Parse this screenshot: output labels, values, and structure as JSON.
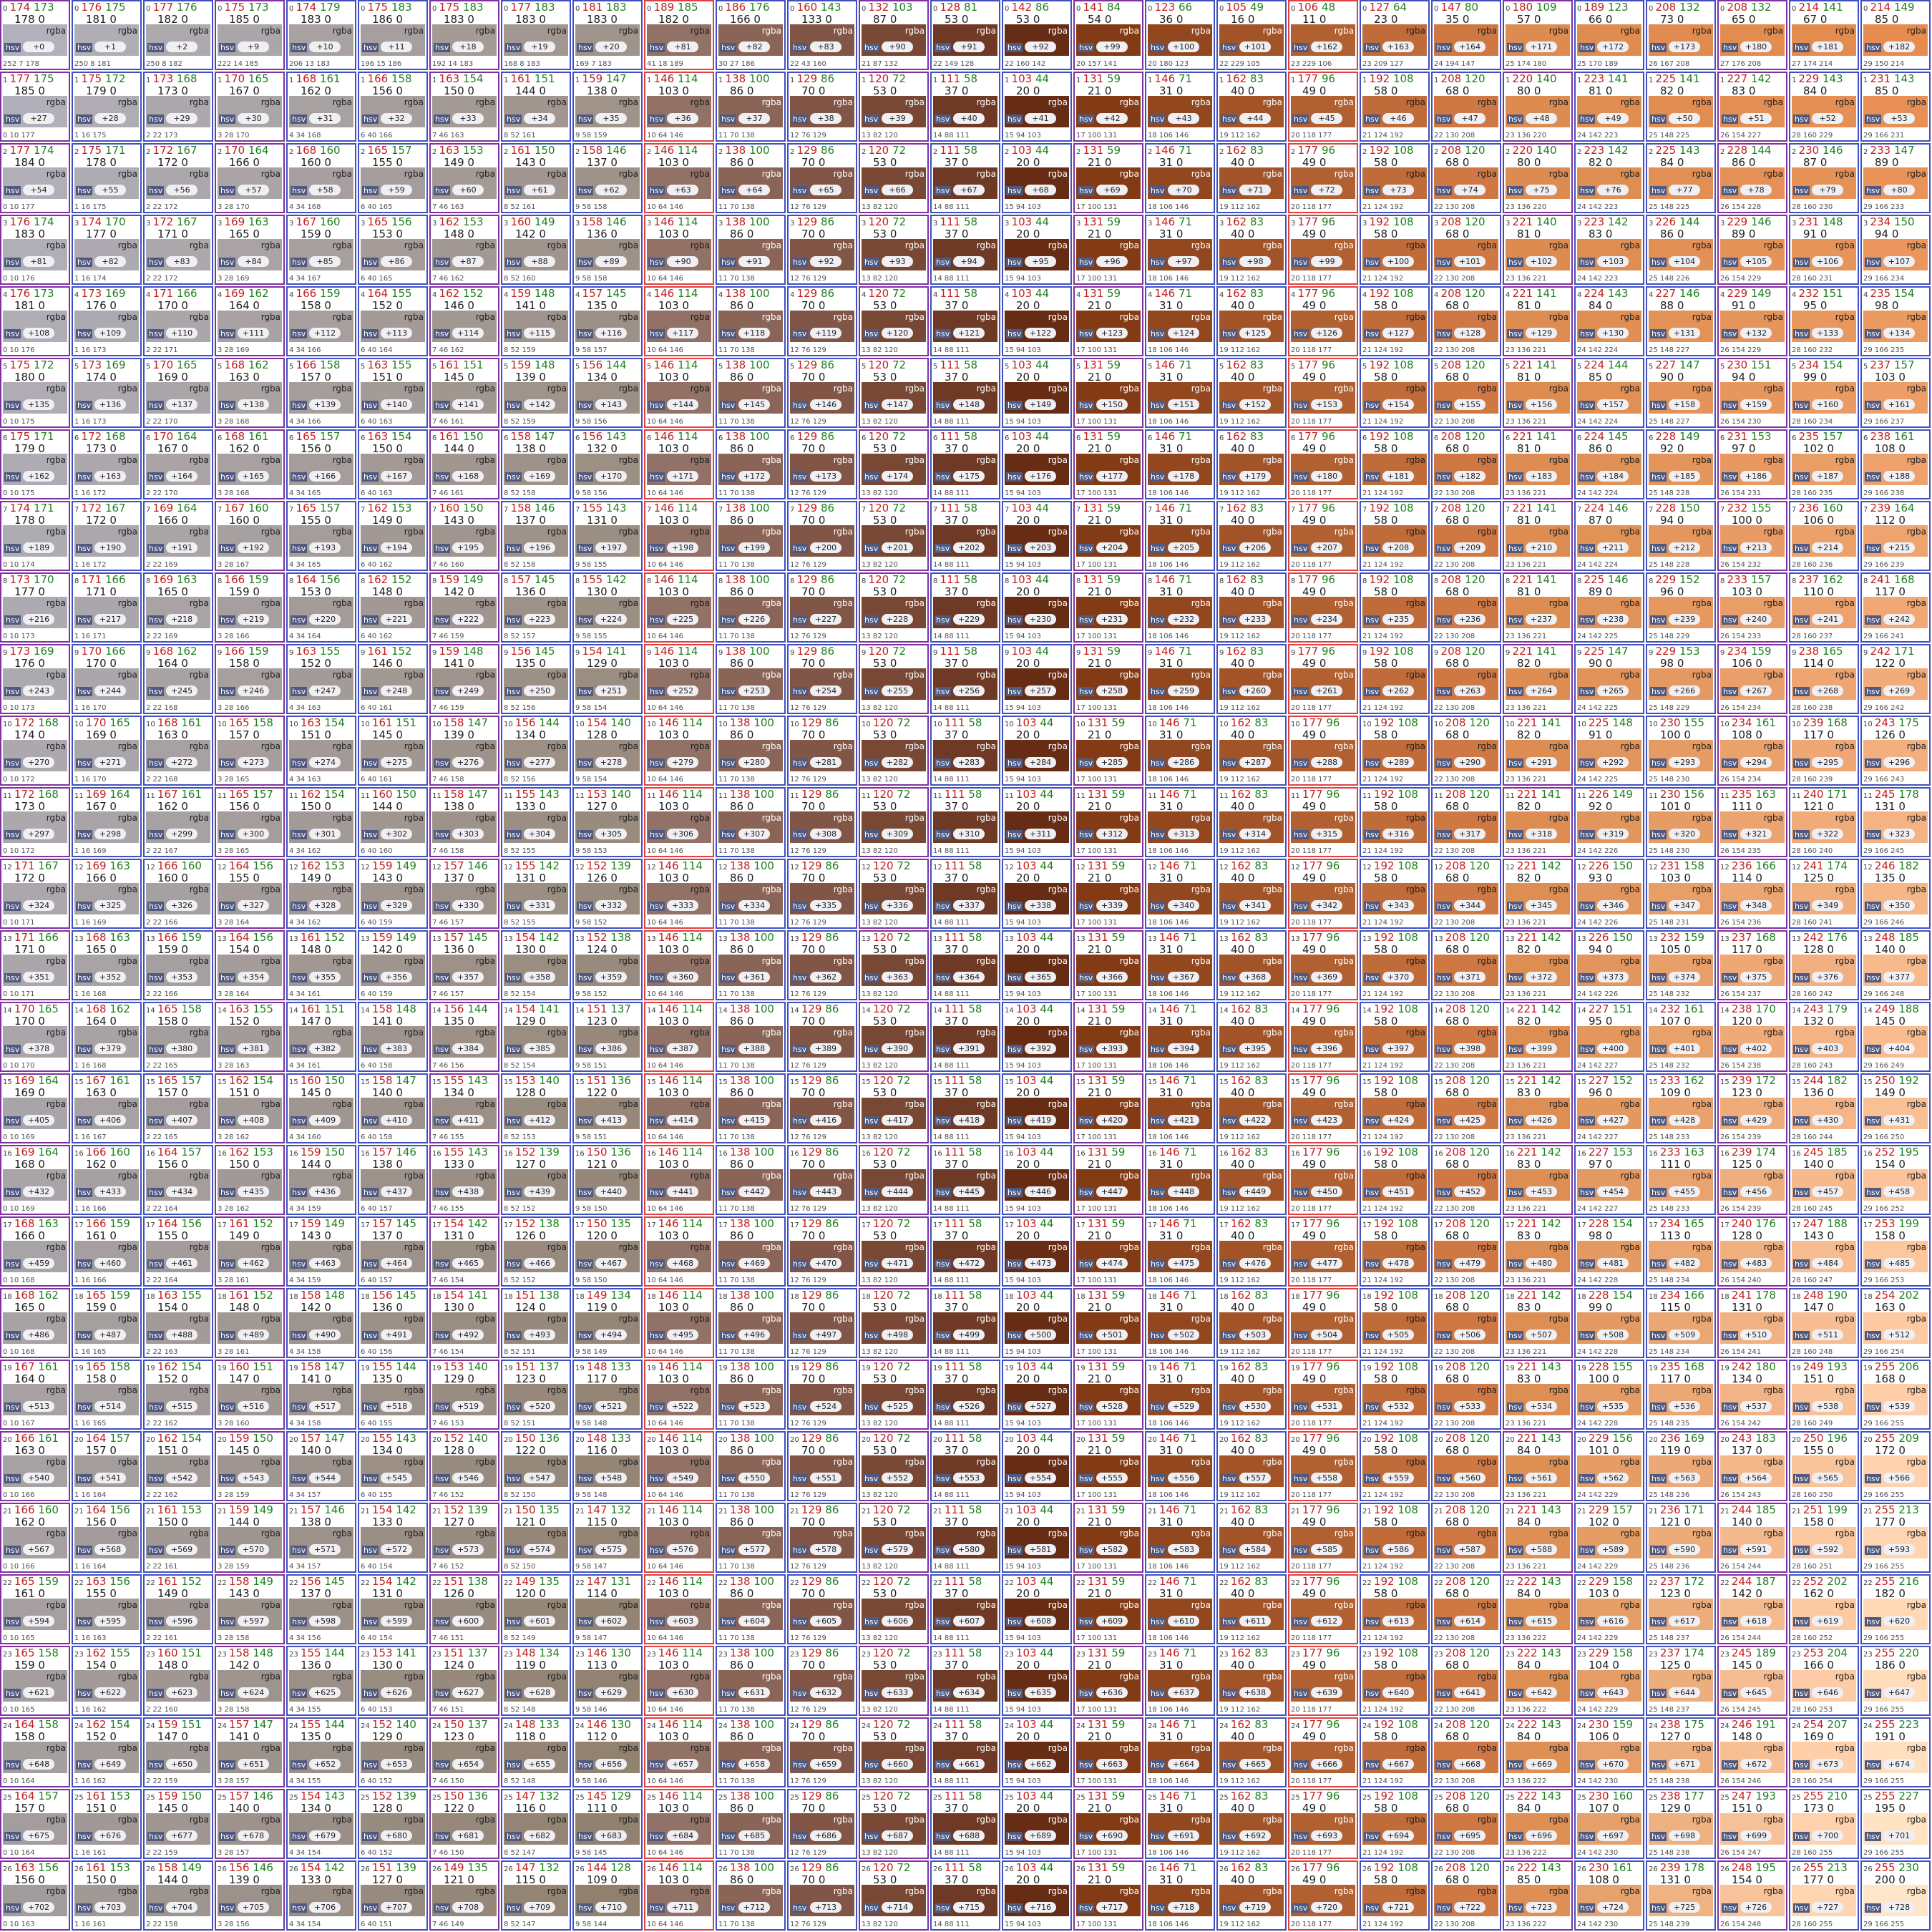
{
  "grid": {
    "cols": 27,
    "rows": 27,
    "label_rgba": "rgba",
    "label_hsv": "hsv"
  },
  "legend_colors": {
    "border_default": "#8a8ad0",
    "border_red": "#e04040",
    "border_purple": "#8030a0",
    "border_blue": "#4050c0"
  },
  "cells_sample": [
    {
      "r": 174,
      "g": 173,
      "v": 178,
      "tag": "+0",
      "footer": "252 7 178"
    },
    {
      "r": 176,
      "g": 175,
      "v": 181,
      "tag": "+1",
      "footer": "250 8 181"
    },
    {
      "r": 177,
      "g": 176,
      "v": 182,
      "tag": "+2",
      "footer": "250 8 182"
    },
    {
      "r": 175,
      "g": 173,
      "v": 185,
      "tag": "+9",
      "footer": "222 14 185"
    },
    {
      "r": 174,
      "g": 179,
      "v": 183,
      "tag": "+10",
      "footer": "206 13 183"
    },
    {
      "r": 175,
      "g": 183,
      "v": 186,
      "tag": "+11",
      "footer": "196 15 186"
    },
    {
      "r": 175,
      "g": 183,
      "v": 183,
      "tag": "+18",
      "footer": "192 14 183"
    },
    {
      "r": 177,
      "g": 183,
      "v": 183,
      "tag": "+19",
      "footer": "168 8 183"
    },
    {
      "r": 181,
      "g": 183,
      "v": 183,
      "tag": "+20",
      "footer": "169 7 183"
    },
    {
      "r": 189,
      "g": 185,
      "v": 182,
      "tag": "+81",
      "footer": "41 18 189"
    },
    {
      "r": 186,
      "g": 176,
      "v": 166,
      "tag": "+82",
      "footer": "30 27 186"
    },
    {
      "r": 160,
      "g": 143,
      "v": 133,
      "tag": "+83",
      "footer": "22 43 160"
    },
    {
      "r": 132,
      "g": 103,
      "v": 87,
      "tag": "+90",
      "footer": "21 87 132"
    },
    {
      "r": 128,
      "g": 81,
      "v": 53,
      "tag": "+91",
      "footer": "22 149 128"
    },
    {
      "r": 142,
      "g": 86,
      "v": 53,
      "tag": "+92",
      "footer": "22 160 142"
    },
    {
      "r": 141,
      "g": 84,
      "v": 54,
      "tag": "+99",
      "footer": "20 157 141"
    },
    {
      "r": 123,
      "g": 66,
      "v": 36,
      "tag": "+100",
      "footer": "20 180 123"
    },
    {
      "r": 105,
      "g": 49,
      "v": 16,
      "tag": "+101",
      "footer": "22 229 105"
    },
    {
      "r": 106,
      "g": 48,
      "v": 11,
      "tag": "+162",
      "footer": "23 229 106"
    },
    {
      "r": 127,
      "g": 64,
      "v": 23,
      "tag": "+163",
      "footer": "23 209 127"
    },
    {
      "r": 147,
      "g": 80,
      "v": 35,
      "tag": "+164",
      "footer": "24 194 147"
    },
    {
      "r": 180,
      "g": 109,
      "v": 57,
      "tag": "+171",
      "footer": "25 174 180"
    },
    {
      "r": 189,
      "g": 123,
      "v": 66,
      "tag": "+172",
      "footer": "25 170 189"
    },
    {
      "r": 208,
      "g": 132,
      "v": 73,
      "tag": "+173",
      "footer": "26 167 208"
    },
    {
      "r": 208,
      "g": 132,
      "v": 65,
      "tag": "+180",
      "footer": "27 176 208"
    },
    {
      "r": 214,
      "g": 141,
      "v": 67,
      "tag": "+181",
      "footer": "27 174 214"
    },
    {
      "r": 214,
      "g": 149,
      "v": 85,
      "tag": "+182",
      "footer": "29 150 214"
    }
  ]
}
